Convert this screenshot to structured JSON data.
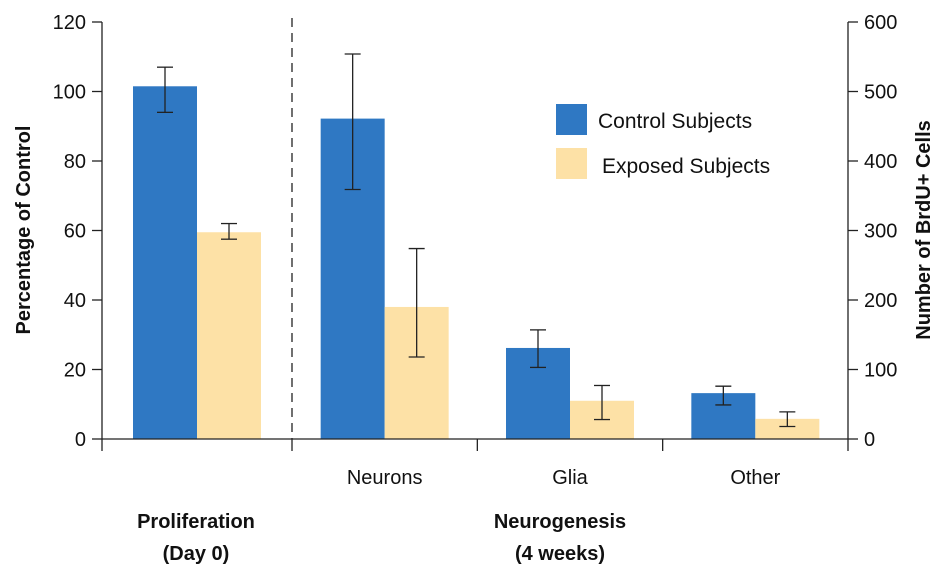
{
  "chart_data": {
    "type": "bar",
    "left_axis": {
      "label": "Percentage of Control",
      "ticks": [
        "0",
        "20",
        "40",
        "60",
        "80",
        "100",
        "120"
      ],
      "ylim": [
        0,
        120
      ]
    },
    "right_axis": {
      "label": "Number of BrdU+ Cells",
      "ticks": [
        "0",
        "100",
        "200",
        "300",
        "400",
        "500",
        "600"
      ],
      "ylim": [
        0,
        600
      ]
    },
    "groups": [
      {
        "title_lines": [
          "Proliferation",
          "(Day 0)"
        ],
        "axis": "left",
        "categories": [
          ""
        ],
        "series_values": [
          [
            101.5
          ],
          [
            59.5
          ]
        ],
        "errors": [
          [
            [
              94,
              107
            ]
          ],
          [
            [
              57.5,
              62
            ]
          ]
        ]
      },
      {
        "title_lines": [
          "Neurogenesis",
          "(4 weeks)"
        ],
        "axis": "right",
        "categories": [
          "Neurons",
          "Glia",
          "Other"
        ],
        "series_values": [
          [
            461,
            131,
            66
          ],
          [
            190,
            55,
            29
          ]
        ],
        "errors": [
          [
            [
              359,
              554
            ],
            [
              103,
              157
            ],
            [
              49,
              76
            ]
          ],
          [
            [
              118,
              274
            ],
            [
              28,
              77
            ],
            [
              18,
              39
            ]
          ]
        ]
      }
    ],
    "series": [
      {
        "name": "Control Subjects",
        "color": "#2f78c3"
      },
      {
        "name": "Exposed Subjects",
        "color": "#fde1a6"
      }
    ],
    "legend": {
      "placement": "top-right"
    },
    "grid": false
  }
}
